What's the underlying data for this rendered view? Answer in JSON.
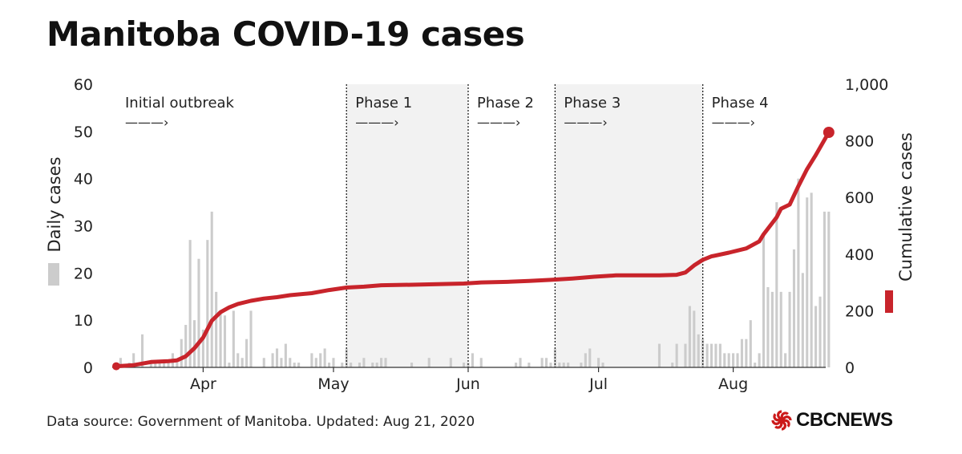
{
  "title": "Manitoba COVID-19 cases",
  "footer": "Data source: Government of Manitoba.  Updated: Aug 21, 2020",
  "logo": {
    "text": "CBCNEWS",
    "icon": "cbc-gem-icon",
    "color": "#cc1a1a"
  },
  "colors": {
    "bar": "#cccccc",
    "line": "#c8242b",
    "shade": "#f2f2f2",
    "divider": "#222222"
  },
  "chart_data": {
    "type": "bar+line",
    "x_domain": [
      "2020-03-12",
      "2020-08-21"
    ],
    "left_axis": {
      "label": "Daily cases",
      "ylim": [
        0,
        60
      ],
      "ticks": [
        0,
        10,
        20,
        30,
        40,
        50,
        60
      ]
    },
    "right_axis": {
      "label": "Cumulative cases",
      "ylim": [
        0,
        1000
      ],
      "ticks": [
        "0",
        "200",
        "400",
        "600",
        "800",
        "1,000"
      ],
      "tick_values": [
        0,
        200,
        400,
        600,
        800,
        1000
      ]
    },
    "months": [
      {
        "label": "Apr",
        "date": "2020-04-01"
      },
      {
        "label": "May",
        "date": "2020-05-01"
      },
      {
        "label": "Jun",
        "date": "2020-06-01"
      },
      {
        "label": "Jul",
        "date": "2020-07-01"
      },
      {
        "label": "Aug",
        "date": "2020-08-01"
      }
    ],
    "phases": [
      {
        "label": "Initial outbreak",
        "arrow": "———›",
        "start": "2020-03-12",
        "end": "2020-05-04",
        "shaded": false
      },
      {
        "label": "Phase 1",
        "arrow": "———›",
        "start": "2020-05-04",
        "end": "2020-06-01",
        "shaded": true
      },
      {
        "label": "Phase 2",
        "arrow": "———›",
        "start": "2020-06-01",
        "end": "2020-06-21",
        "shaded": false
      },
      {
        "label": "Phase 3",
        "arrow": "———›",
        "start": "2020-06-21",
        "end": "2020-07-25",
        "shaded": true
      },
      {
        "label": "Phase 4",
        "arrow": "———›",
        "start": "2020-07-25",
        "end": "2020-08-21",
        "shaded": false
      }
    ],
    "daily": [
      [
        "2020-03-12",
        1
      ],
      [
        "2020-03-13",
        2
      ],
      [
        "2020-03-15",
        1
      ],
      [
        "2020-03-16",
        3
      ],
      [
        "2020-03-18",
        7
      ],
      [
        "2020-03-20",
        1
      ],
      [
        "2020-03-21",
        1
      ],
      [
        "2020-03-22",
        1
      ],
      [
        "2020-03-23",
        1
      ],
      [
        "2020-03-24",
        1
      ],
      [
        "2020-03-25",
        3
      ],
      [
        "2020-03-26",
        1
      ],
      [
        "2020-03-27",
        6
      ],
      [
        "2020-03-28",
        9
      ],
      [
        "2020-03-29",
        27
      ],
      [
        "2020-03-30",
        10
      ],
      [
        "2020-03-31",
        23
      ],
      [
        "2020-04-01",
        8
      ],
      [
        "2020-04-02",
        27
      ],
      [
        "2020-04-03",
        33
      ],
      [
        "2020-04-04",
        16
      ],
      [
        "2020-04-05",
        12
      ],
      [
        "2020-04-06",
        11
      ],
      [
        "2020-04-07",
        1
      ],
      [
        "2020-04-08",
        12
      ],
      [
        "2020-04-09",
        3
      ],
      [
        "2020-04-10",
        2
      ],
      [
        "2020-04-11",
        6
      ],
      [
        "2020-04-12",
        12
      ],
      [
        "2020-04-15",
        2
      ],
      [
        "2020-04-17",
        3
      ],
      [
        "2020-04-18",
        4
      ],
      [
        "2020-04-19",
        2
      ],
      [
        "2020-04-20",
        5
      ],
      [
        "2020-04-21",
        2
      ],
      [
        "2020-04-22",
        1
      ],
      [
        "2020-04-23",
        1
      ],
      [
        "2020-04-26",
        3
      ],
      [
        "2020-04-27",
        2
      ],
      [
        "2020-04-28",
        3
      ],
      [
        "2020-04-29",
        4
      ],
      [
        "2020-04-30",
        1
      ],
      [
        "2020-05-01",
        2
      ],
      [
        "2020-05-03",
        1
      ],
      [
        "2020-05-04",
        4
      ],
      [
        "2020-05-05",
        1
      ],
      [
        "2020-05-07",
        1
      ],
      [
        "2020-05-08",
        2
      ],
      [
        "2020-05-10",
        1
      ],
      [
        "2020-05-11",
        1
      ],
      [
        "2020-05-12",
        2
      ],
      [
        "2020-05-13",
        2
      ],
      [
        "2020-05-19",
        1
      ],
      [
        "2020-05-23",
        2
      ],
      [
        "2020-05-28",
        2
      ],
      [
        "2020-05-31",
        1
      ],
      [
        "2020-06-01",
        1
      ],
      [
        "2020-06-02",
        3
      ],
      [
        "2020-06-04",
        2
      ],
      [
        "2020-06-12",
        1
      ],
      [
        "2020-06-13",
        2
      ],
      [
        "2020-06-15",
        1
      ],
      [
        "2020-06-18",
        2
      ],
      [
        "2020-06-19",
        2
      ],
      [
        "2020-06-20",
        1
      ],
      [
        "2020-06-21",
        4
      ],
      [
        "2020-06-22",
        1
      ],
      [
        "2020-06-23",
        1
      ],
      [
        "2020-06-24",
        1
      ],
      [
        "2020-06-27",
        1
      ],
      [
        "2020-06-28",
        3
      ],
      [
        "2020-06-29",
        4
      ],
      [
        "2020-07-01",
        2
      ],
      [
        "2020-07-02",
        1
      ],
      [
        "2020-07-15",
        5
      ],
      [
        "2020-07-18",
        1
      ],
      [
        "2020-07-19",
        5
      ],
      [
        "2020-07-21",
        5
      ],
      [
        "2020-07-22",
        13
      ],
      [
        "2020-07-23",
        12
      ],
      [
        "2020-07-24",
        7
      ],
      [
        "2020-07-25",
        6
      ],
      [
        "2020-07-26",
        5
      ],
      [
        "2020-07-27",
        5
      ],
      [
        "2020-07-28",
        5
      ],
      [
        "2020-07-29",
        5
      ],
      [
        "2020-07-30",
        3
      ],
      [
        "2020-07-31",
        3
      ],
      [
        "2020-08-01",
        3
      ],
      [
        "2020-08-02",
        3
      ],
      [
        "2020-08-03",
        6
      ],
      [
        "2020-08-04",
        6
      ],
      [
        "2020-08-05",
        10
      ],
      [
        "2020-08-06",
        1
      ],
      [
        "2020-08-07",
        3
      ],
      [
        "2020-08-08",
        28
      ],
      [
        "2020-08-09",
        17
      ],
      [
        "2020-08-10",
        16
      ],
      [
        "2020-08-11",
        35
      ],
      [
        "2020-08-12",
        16
      ],
      [
        "2020-08-13",
        3
      ],
      [
        "2020-08-14",
        16
      ],
      [
        "2020-08-15",
        25
      ],
      [
        "2020-08-16",
        40
      ],
      [
        "2020-08-17",
        20
      ],
      [
        "2020-08-18",
        36
      ],
      [
        "2020-08-19",
        37
      ],
      [
        "2020-08-20",
        13
      ],
      [
        "2020-08-21",
        15
      ],
      [
        "2020-08-22",
        33
      ],
      [
        "2020-08-23",
        33
      ]
    ],
    "cumulative": [
      [
        "2020-03-12",
        4
      ],
      [
        "2020-03-16",
        8
      ],
      [
        "2020-03-20",
        19
      ],
      [
        "2020-03-24",
        22
      ],
      [
        "2020-03-26",
        25
      ],
      [
        "2020-03-28",
        39
      ],
      [
        "2020-03-30",
        68
      ],
      [
        "2020-04-01",
        105
      ],
      [
        "2020-04-03",
        165
      ],
      [
        "2020-04-05",
        195
      ],
      [
        "2020-04-07",
        212
      ],
      [
        "2020-04-09",
        224
      ],
      [
        "2020-04-12",
        235
      ],
      [
        "2020-04-15",
        243
      ],
      [
        "2020-04-18",
        248
      ],
      [
        "2020-04-21",
        255
      ],
      [
        "2020-04-26",
        262
      ],
      [
        "2020-04-30",
        273
      ],
      [
        "2020-05-04",
        282
      ],
      [
        "2020-05-08",
        285
      ],
      [
        "2020-05-12",
        290
      ],
      [
        "2020-05-20",
        292
      ],
      [
        "2020-05-25",
        294
      ],
      [
        "2020-05-31",
        296
      ],
      [
        "2020-06-04",
        300
      ],
      [
        "2020-06-10",
        302
      ],
      [
        "2020-06-15",
        305
      ],
      [
        "2020-06-20",
        309
      ],
      [
        "2020-06-25",
        314
      ],
      [
        "2020-06-30",
        320
      ],
      [
        "2020-07-05",
        325
      ],
      [
        "2020-07-10",
        325
      ],
      [
        "2020-07-15",
        325
      ],
      [
        "2020-07-19",
        327
      ],
      [
        "2020-07-21",
        335
      ],
      [
        "2020-07-23",
        360
      ],
      [
        "2020-07-25",
        380
      ],
      [
        "2020-07-27",
        392
      ],
      [
        "2020-07-31",
        405
      ],
      [
        "2020-08-04",
        420
      ],
      [
        "2020-08-07",
        445
      ],
      [
        "2020-08-08",
        470
      ],
      [
        "2020-08-11",
        530
      ],
      [
        "2020-08-12",
        560
      ],
      [
        "2020-08-14",
        575
      ],
      [
        "2020-08-16",
        640
      ],
      [
        "2020-08-18",
        700
      ],
      [
        "2020-08-20",
        750
      ],
      [
        "2020-08-23",
        830
      ]
    ]
  }
}
